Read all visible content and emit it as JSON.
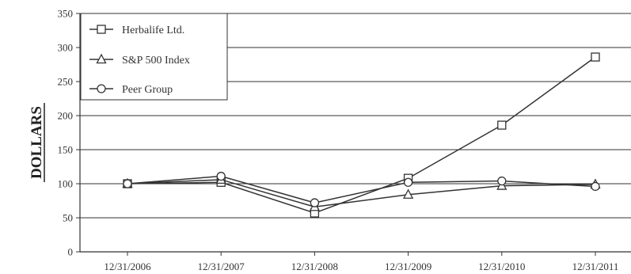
{
  "chart_data": {
    "type": "line",
    "title": "",
    "xlabel": "",
    "ylabel": "DOLLARS",
    "categories": [
      "12/31/2006",
      "12/31/2007",
      "12/31/2008",
      "12/31/2009",
      "12/31/2010",
      "12/31/2011"
    ],
    "ylim": [
      0,
      350
    ],
    "yticks": [
      0,
      50,
      100,
      150,
      200,
      250,
      300,
      350
    ],
    "grid": "horizontal",
    "legend_position": "top-left",
    "series": [
      {
        "name": "Herbalife Ltd.",
        "marker": "square",
        "values": [
          100,
          102,
          57,
          108,
          186,
          286
        ]
      },
      {
        "name": "S&P 500 Index",
        "marker": "triangle",
        "values": [
          100,
          106,
          66,
          84,
          97,
          99
        ]
      },
      {
        "name": "Peer Group",
        "marker": "circle",
        "values": [
          100,
          111,
          72,
          102,
          104,
          96
        ]
      }
    ],
    "colors": {
      "line": "#333333",
      "grid": "#333333",
      "marker_fill": "#ffffff",
      "background": "#ffffff"
    }
  }
}
